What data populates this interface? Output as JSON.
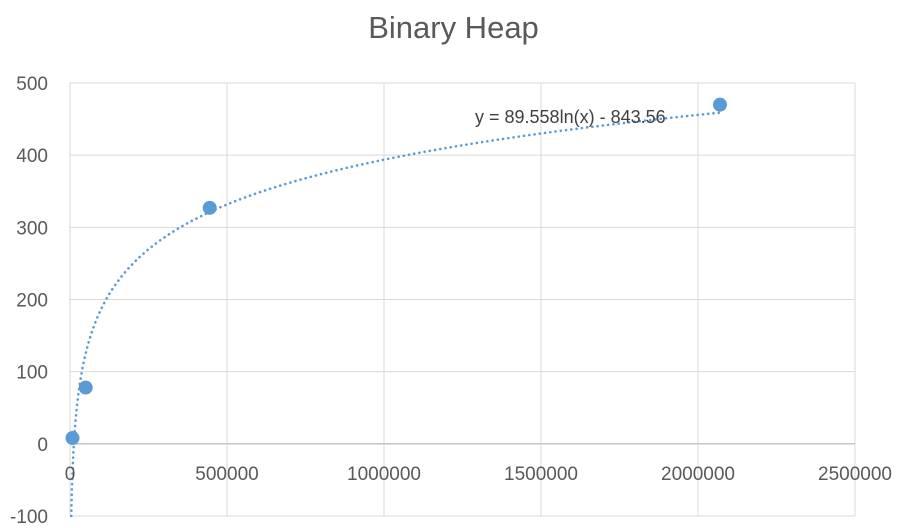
{
  "chart_data": {
    "type": "scatter",
    "title": "Binary Heap",
    "xlabel": "",
    "ylabel": "",
    "xlim": [
      0,
      2500000
    ],
    "ylim": [
      -100,
      500
    ],
    "x_ticks": [
      "0",
      "500000",
      "1000000",
      "1500000",
      "2000000",
      "2500000"
    ],
    "y_ticks": [
      "-100",
      "0",
      "100",
      "200",
      "300",
      "400",
      "500"
    ],
    "grid": true,
    "series": [
      {
        "points": [
          {
            "x": 8000,
            "y": 8
          },
          {
            "x": 50000,
            "y": 78
          },
          {
            "x": 445000,
            "y": 327
          },
          {
            "x": 2070000,
            "y": 470
          }
        ],
        "color": "#5b9bd5"
      }
    ],
    "trendline": {
      "type": "logarithmic",
      "a": 89.558,
      "b": -843.56,
      "equation_label": "y = 89.558ln(x) - 843.56",
      "color": "#5b9bd5",
      "style": "dotted"
    }
  }
}
